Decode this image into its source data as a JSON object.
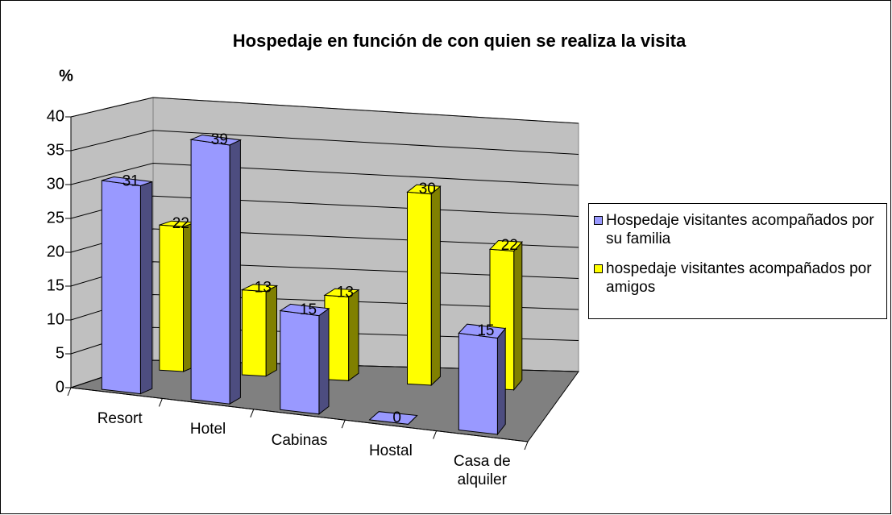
{
  "chart_data": {
    "type": "bar3d",
    "title": "Hospedaje en función de con quien se realiza la visita",
    "y_label": "%",
    "categories": [
      "Resort",
      "Hotel",
      "Cabinas",
      "Hostal",
      "Casa de alquiler"
    ],
    "series": [
      {
        "name": "Hospedaje visitantes acompañados por su familia",
        "color": "#9999ff",
        "values": [
          31,
          39,
          15,
          0,
          15
        ]
      },
      {
        "name": "hospedaje visitantes acompañados por amigos",
        "color": "#ffff00",
        "values": [
          22,
          13,
          13,
          30,
          22
        ]
      }
    ],
    "ylim": [
      0,
      40
    ],
    "yticks": [
      0,
      5,
      10,
      15,
      20,
      25,
      30,
      35,
      40
    ],
    "grid": true,
    "legend": "right"
  }
}
